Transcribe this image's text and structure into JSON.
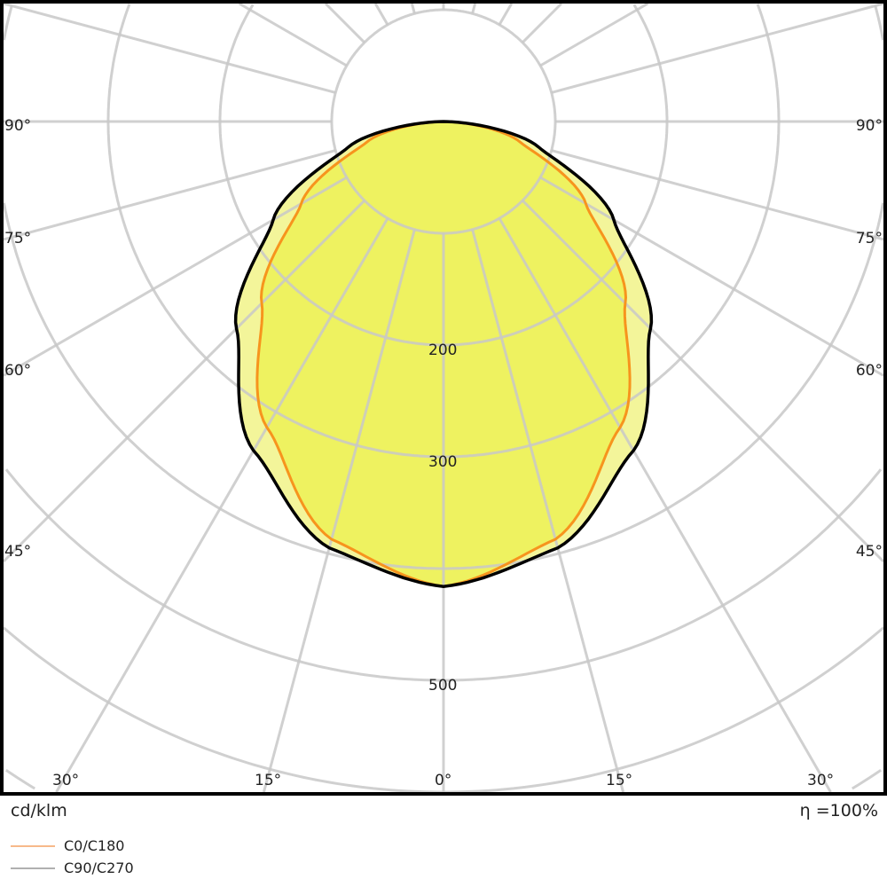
{
  "chart_data": {
    "type": "polar",
    "unit_label": "cd/klm",
    "efficiency_label": "η =100%",
    "radial_ticks": [
      100,
      200,
      300,
      400,
      500,
      600,
      700
    ],
    "radial_tick_labels": [
      "200",
      "300",
      "500"
    ],
    "angle_labels_left": [
      "90°",
      "75°",
      "60°",
      "45°"
    ],
    "angle_labels_right": [
      "90°",
      "75°",
      "60°",
      "45°"
    ],
    "angle_labels_bottom": [
      "30°",
      "15°",
      "0°",
      "15°",
      "30°"
    ],
    "angles_deg": [
      0,
      15,
      30,
      45,
      60,
      75,
      90
    ],
    "series": [
      {
        "name": "C0/C180",
        "color": "#f7941d",
        "legend_color": "#f7b98a",
        "values": [
          416,
          387,
          316,
          230,
          147,
          71,
          0
        ]
      },
      {
        "name": "C90/C270",
        "color": "#000000",
        "legend_color": "#b0b0b0",
        "values": [
          416,
          395,
          340,
          262,
          176,
          88,
          0
        ]
      }
    ],
    "fill_inner": "#eef260",
    "fill_outer": "#f3f59a",
    "grid": true
  }
}
